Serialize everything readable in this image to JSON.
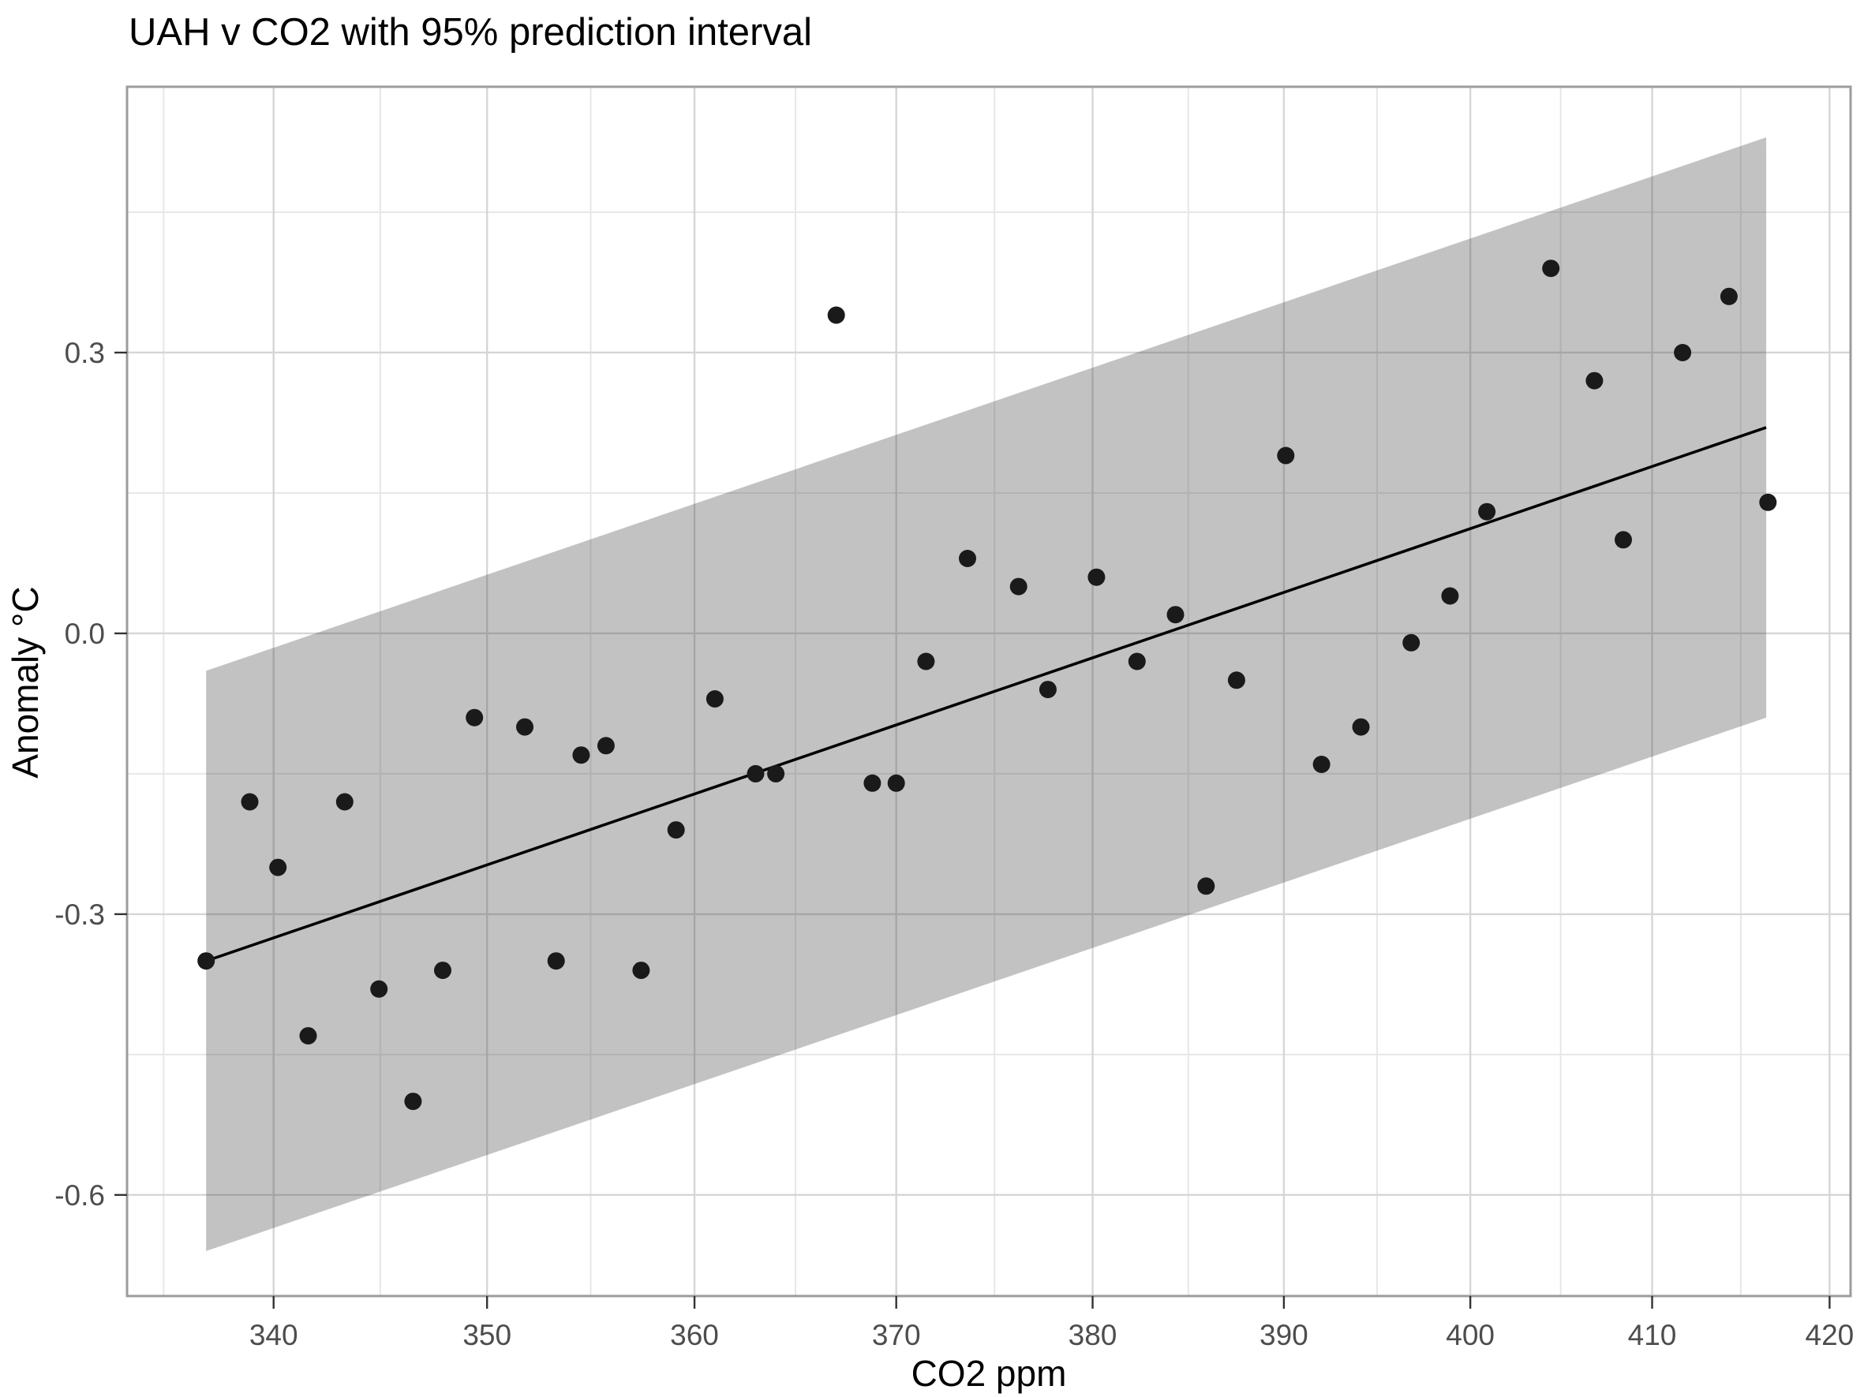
{
  "chart_data": {
    "type": "scatter",
    "title": "UAH v CO2 with 95% prediction interval",
    "xlabel": "CO2 ppm",
    "ylabel": "Anomaly °C",
    "x_scale": "log",
    "grid": true,
    "legend": "none",
    "xlim": [
      333.3,
      421.2
    ],
    "ylim": [
      -0.708,
      0.584
    ],
    "x_tick_values": [
      340,
      350,
      360,
      370,
      380,
      390,
      400,
      410,
      420
    ],
    "x_tick_labels": [
      "340",
      "350",
      "360",
      "370",
      "380",
      "390",
      "400",
      "410",
      "420"
    ],
    "x_minor_tick_values": [
      334.96,
      344.96,
      354.96,
      364.97,
      374.97,
      384.97,
      394.97,
      404.94,
      414.97
    ],
    "y_tick_values": [
      0.3,
      0.0,
      -0.3,
      -0.6
    ],
    "y_tick_labels": [
      "0.3",
      "0.0",
      "-0.3",
      "-0.6"
    ],
    "y_minor_tick_values": [
      0.45,
      0.15,
      -0.15,
      -0.45
    ],
    "points": [
      [
        336.9,
        -0.35
      ],
      [
        338.9,
        -0.18
      ],
      [
        340.2,
        -0.25
      ],
      [
        341.6,
        -0.43
      ],
      [
        343.3,
        -0.18
      ],
      [
        344.9,
        -0.38
      ],
      [
        346.5,
        -0.5
      ],
      [
        347.9,
        -0.36
      ],
      [
        349.4,
        -0.09
      ],
      [
        351.8,
        -0.1
      ],
      [
        353.3,
        -0.35
      ],
      [
        354.5,
        -0.13
      ],
      [
        355.7,
        -0.12
      ],
      [
        357.4,
        -0.36
      ],
      [
        359.1,
        -0.21
      ],
      [
        361.0,
        -0.07
      ],
      [
        363.0,
        -0.15
      ],
      [
        364.0,
        -0.15
      ],
      [
        367.0,
        0.34
      ],
      [
        368.8,
        -0.16
      ],
      [
        370.0,
        -0.16
      ],
      [
        371.5,
        -0.03
      ],
      [
        373.6,
        0.08
      ],
      [
        376.2,
        0.05
      ],
      [
        377.7,
        -0.06
      ],
      [
        380.2,
        0.06
      ],
      [
        382.3,
        -0.03
      ],
      [
        384.3,
        0.02
      ],
      [
        385.9,
        -0.27
      ],
      [
        387.5,
        -0.05
      ],
      [
        390.1,
        0.19
      ],
      [
        392.0,
        -0.14
      ],
      [
        394.1,
        -0.1
      ],
      [
        396.8,
        -0.01
      ],
      [
        398.9,
        0.04
      ],
      [
        400.9,
        0.13
      ],
      [
        404.4,
        0.39
      ],
      [
        406.8,
        0.27
      ],
      [
        408.4,
        0.1
      ],
      [
        411.7,
        0.3
      ],
      [
        414.3,
        0.36
      ],
      [
        416.5,
        0.14
      ]
    ],
    "regression_line": {
      "x1": 336.9,
      "y1": -0.35,
      "x2": 416.4,
      "y2": 0.22
    },
    "prediction_band": {
      "x_left": 336.9,
      "x_right": 416.4,
      "upper_left": -0.04,
      "upper_right": 0.53,
      "lower_left": -0.66,
      "lower_right": -0.09
    },
    "colors": {
      "background": "#ffffff",
      "panel_background": "#ffffff",
      "panel_border": "#9c9c9c",
      "grid_major": "#d6d6d6",
      "grid_minor": "#e7e7e7",
      "band_fill": "rgba(70,70,70,0.33)",
      "regression_line": "#000000",
      "point": "#1a1a1a",
      "tick": "#333333",
      "tick_label": "#4d4d4d",
      "text": "#000000"
    }
  }
}
